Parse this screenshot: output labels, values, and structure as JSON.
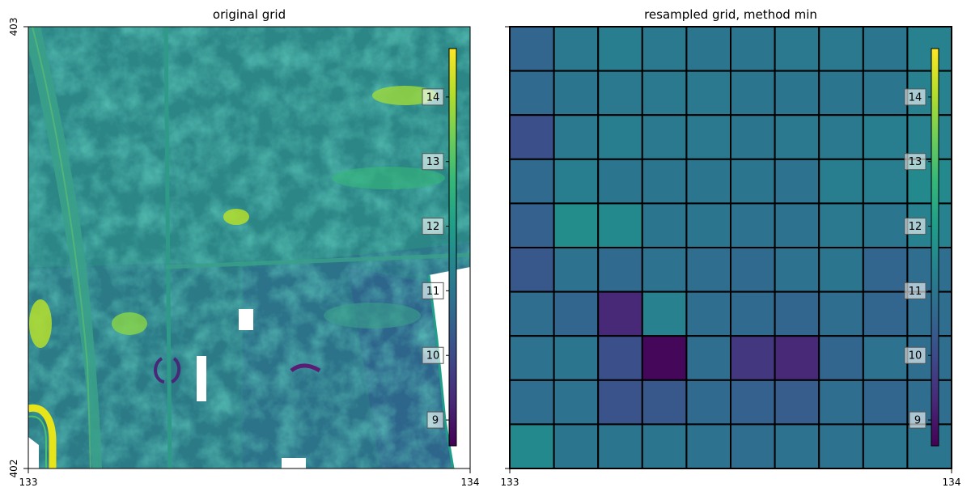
{
  "chart_data": [
    {
      "type": "heatmap",
      "title": "original grid",
      "xlabel": "",
      "ylabel": "",
      "x_ticks": [
        "133",
        "134"
      ],
      "y_ticks": [
        "403",
        "402"
      ],
      "xlim": [
        133,
        134
      ],
      "ylim": [
        402,
        403
      ],
      "colormap": "viridis",
      "colorbar": {
        "ticks": [
          "9",
          "10",
          "11",
          "12",
          "13",
          "14"
        ],
        "range": [
          8.6,
          14.75
        ],
        "placement": "inset-right"
      },
      "description_free_raster": true
    },
    {
      "type": "heatmap",
      "title": "resampled grid, method min",
      "xlabel": "",
      "ylabel": "",
      "x_ticks": [
        "133",
        "134"
      ],
      "y_ticks": [],
      "xlim": [
        133,
        134
      ],
      "ylim": [
        402,
        403
      ],
      "colormap": "viridis",
      "grid_rows": 10,
      "grid_cols": 10,
      "values": [
        [
          10.6,
          11.1,
          11.2,
          11.1,
          11.0,
          11.0,
          11.1,
          11.1,
          11.0,
          11.3
        ],
        [
          10.7,
          11.0,
          11.1,
          11.1,
          11.1,
          11.0,
          11.0,
          11.0,
          11.0,
          11.3
        ],
        [
          10.1,
          11.1,
          11.2,
          11.1,
          11.1,
          11.0,
          11.1,
          11.1,
          11.2,
          11.3
        ],
        [
          10.7,
          11.2,
          11.0,
          11.0,
          11.0,
          11.0,
          10.9,
          11.2,
          11.2,
          11.5
        ],
        [
          10.5,
          11.6,
          11.5,
          11.0,
          11.0,
          10.9,
          10.9,
          11.1,
          11.0,
          11.3
        ],
        [
          10.3,
          10.9,
          10.7,
          10.9,
          10.8,
          10.7,
          10.9,
          11.0,
          10.6,
          10.8
        ],
        [
          10.8,
          10.6,
          9.3,
          11.3,
          10.8,
          10.7,
          10.6,
          10.8,
          10.6,
          10.8
        ],
        [
          10.9,
          11.0,
          10.1,
          8.7,
          10.8,
          9.6,
          9.3,
          10.6,
          10.9,
          10.8
        ],
        [
          10.8,
          10.9,
          10.2,
          10.3,
          10.7,
          10.5,
          10.4,
          10.8,
          10.6,
          10.8
        ],
        [
          11.5,
          11.0,
          11.0,
          11.0,
          10.9,
          10.8,
          10.9,
          10.9,
          11.0,
          11.0
        ]
      ],
      "colorbar": {
        "ticks": [
          "9",
          "10",
          "11",
          "12",
          "13",
          "14"
        ],
        "range": [
          8.6,
          14.75
        ],
        "placement": "inset-right"
      }
    }
  ]
}
